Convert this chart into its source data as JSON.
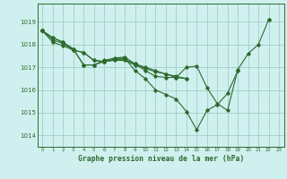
{
  "title": "Graphe pression niveau de la mer (hPa)",
  "bg_color": "#cff0ee",
  "grid_color": "#9ecfca",
  "line_color": "#2d6a2d",
  "xlim": [
    -0.5,
    23.5
  ],
  "ylim": [
    1013.5,
    1019.8
  ],
  "yticks": [
    1014,
    1015,
    1016,
    1017,
    1018,
    1019
  ],
  "xticks": [
    0,
    1,
    2,
    3,
    4,
    5,
    6,
    7,
    8,
    9,
    10,
    11,
    12,
    13,
    14,
    15,
    16,
    17,
    18,
    19,
    20,
    21,
    22,
    23
  ],
  "series": [
    [
      1018.6,
      null,
      null,
      null,
      null,
      null,
      null,
      null,
      null,
      null,
      null,
      null,
      null,
      null,
      null,
      null,
      null,
      null,
      null,
      null,
      null,
      null,
      1019.1,
      null
    ],
    [
      1018.6,
      1018.3,
      1018.1,
      1017.8,
      1017.1,
      1017.1,
      1017.3,
      1017.4,
      1017.45,
      1017.15,
      1016.85,
      1016.6,
      1016.55,
      1016.55,
      1017.0,
      1017.05,
      1016.1,
      1015.4,
      1015.1,
      1016.9,
      1017.6,
      1018.0,
      1019.1,
      null
    ],
    [
      1018.6,
      1018.3,
      1018.1,
      1017.8,
      1017.1,
      1017.1,
      1017.25,
      1017.35,
      1017.4,
      1016.85,
      1016.5,
      1016.0,
      1015.8,
      1015.6,
      1015.05,
      1014.25,
      1015.1,
      1015.35,
      1015.85,
      1016.85,
      null,
      null,
      null,
      null
    ],
    [
      1018.6,
      1018.2,
      1018.05,
      1017.75,
      1017.65,
      1017.3,
      1017.25,
      1017.3,
      1017.3,
      1017.1,
      1016.95,
      1016.8,
      1016.7,
      1016.55,
      1016.5,
      null,
      null,
      null,
      null,
      null,
      null,
      null,
      null,
      null
    ],
    [
      1018.6,
      1018.1,
      1017.95,
      1017.75,
      1017.65,
      1017.3,
      1017.25,
      1017.35,
      1017.35,
      1017.15,
      1017.0,
      1016.85,
      1016.7,
      1016.6,
      1016.5,
      null,
      null,
      null,
      null,
      null,
      null,
      null,
      null,
      null
    ]
  ]
}
